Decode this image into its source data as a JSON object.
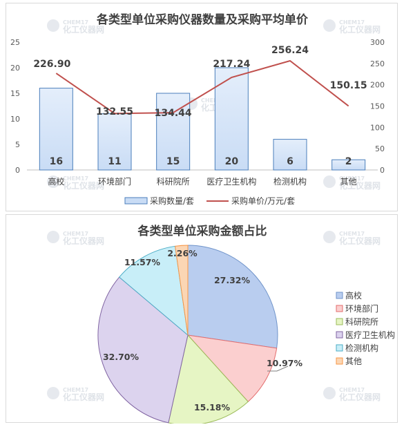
{
  "colors": {
    "bar_fill": "#c9dcf5",
    "bar_stroke": "#4a7ebb",
    "line": "#c0504d",
    "pie": [
      "#b9cdef",
      "#fbcfcf",
      "#e6f5c4",
      "#dcd3ee",
      "#c8eef8",
      "#fbd6b4"
    ],
    "pie_stroke": [
      "#6f93c9",
      "#e36c6c",
      "#9bbb59",
      "#8064a2",
      "#4bacc6",
      "#f79646"
    ]
  },
  "watermark": {
    "top": "CHEM17",
    "bottom": "化工仪器网"
  },
  "chart_data": [
    {
      "type": "bar",
      "title": "各类型单位采购仪器数量及采购平均单价",
      "categories": [
        "高校",
        "环境部门",
        "科研院所",
        "医疗卫生机构",
        "检测机构",
        "其他"
      ],
      "series": [
        {
          "name": "采购数量/套",
          "type": "bar",
          "axis": "left",
          "values": [
            16,
            11,
            15,
            20,
            6,
            2
          ],
          "labels": [
            "16",
            "11",
            "15",
            "20",
            "6",
            "2"
          ]
        },
        {
          "name": "采购单价/万元/套",
          "type": "line",
          "axis": "right",
          "values": [
            226.9,
            132.55,
            134.44,
            217.24,
            256.24,
            150.15
          ],
          "labels": [
            "226.90",
            "132.55",
            "134.44",
            "217.24",
            "256.24",
            "150.15"
          ]
        }
      ],
      "y_left": {
        "min": 0,
        "max": 25,
        "ticks": [
          "0",
          "5",
          "10",
          "15",
          "20",
          "25"
        ]
      },
      "y_right": {
        "min": 0,
        "max": 300,
        "ticks": [
          "0",
          "50",
          "100",
          "150",
          "200",
          "250",
          "300"
        ]
      },
      "legend": "bottom",
      "grid": false
    },
    {
      "type": "pie",
      "title": "各类型单位采购金额占比",
      "categories": [
        "高校",
        "环境部门",
        "科研院所",
        "医疗卫生机构",
        "检测机构",
        "其他"
      ],
      "values": [
        27.32,
        10.97,
        15.18,
        32.7,
        11.57,
        2.26
      ],
      "labels": [
        "27.32%",
        "10.97%",
        "15.18%",
        "32.70%",
        "11.57%",
        "2.26%"
      ],
      "legend": "right"
    }
  ]
}
